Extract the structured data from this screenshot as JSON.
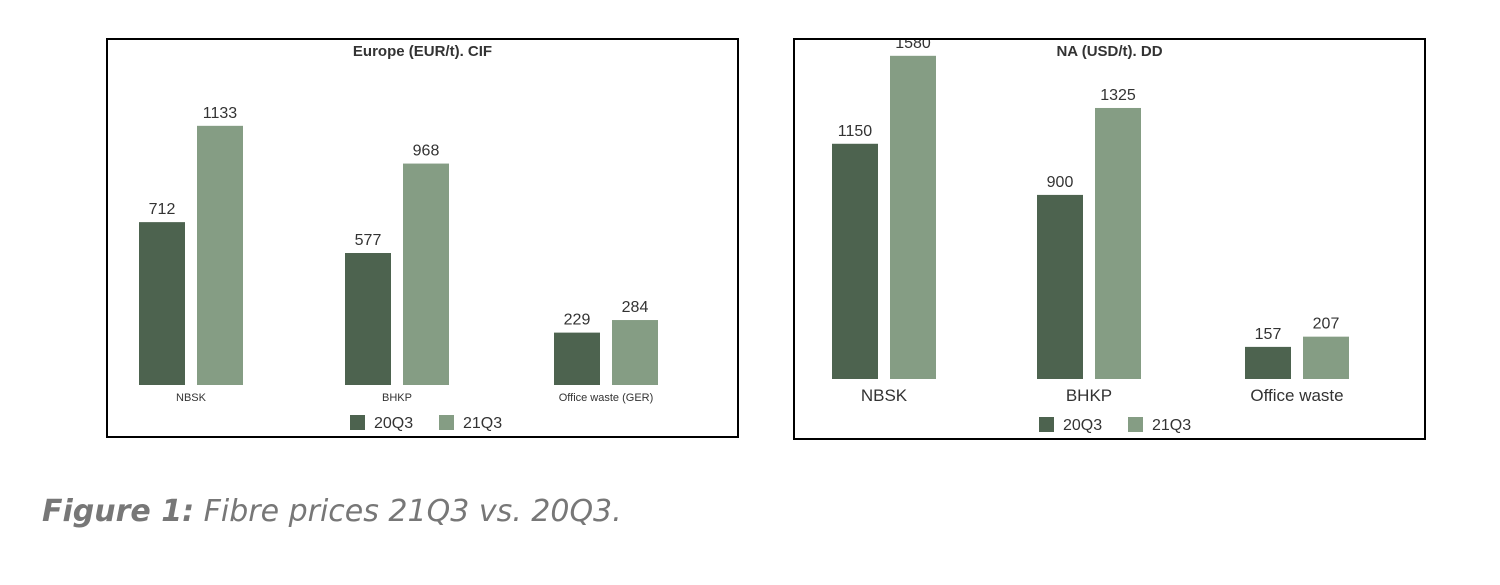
{
  "colors": {
    "s1": "#4d634f",
    "s2": "#859d84",
    "text": "#333333"
  },
  "caption": {
    "label": "Figure 1:",
    "text": " Fibre prices 21Q3 vs. 20Q3."
  },
  "chart_data": [
    {
      "type": "bar",
      "title": "Europe (EUR/t). CIF",
      "categories": [
        "NBSK",
        "BHKP",
        "Office waste (GER)"
      ],
      "series": [
        {
          "name": "20Q3",
          "values": [
            712,
            577,
            229
          ]
        },
        {
          "name": "21Q3",
          "values": [
            1133,
            968,
            284
          ]
        }
      ],
      "ylim": [
        0,
        1600
      ],
      "grid": false,
      "legend": "bottom-center"
    },
    {
      "type": "bar",
      "title": "NA (USD/t). DD",
      "categories": [
        "NBSK",
        "BHKP",
        "Office waste"
      ],
      "series": [
        {
          "name": "20Q3",
          "values": [
            1150,
            900,
            157
          ]
        },
        {
          "name": "21Q3",
          "values": [
            1580,
            1325,
            207
          ]
        }
      ],
      "ylim": [
        0,
        1650
      ],
      "grid": false,
      "legend": "bottom-center"
    }
  ]
}
